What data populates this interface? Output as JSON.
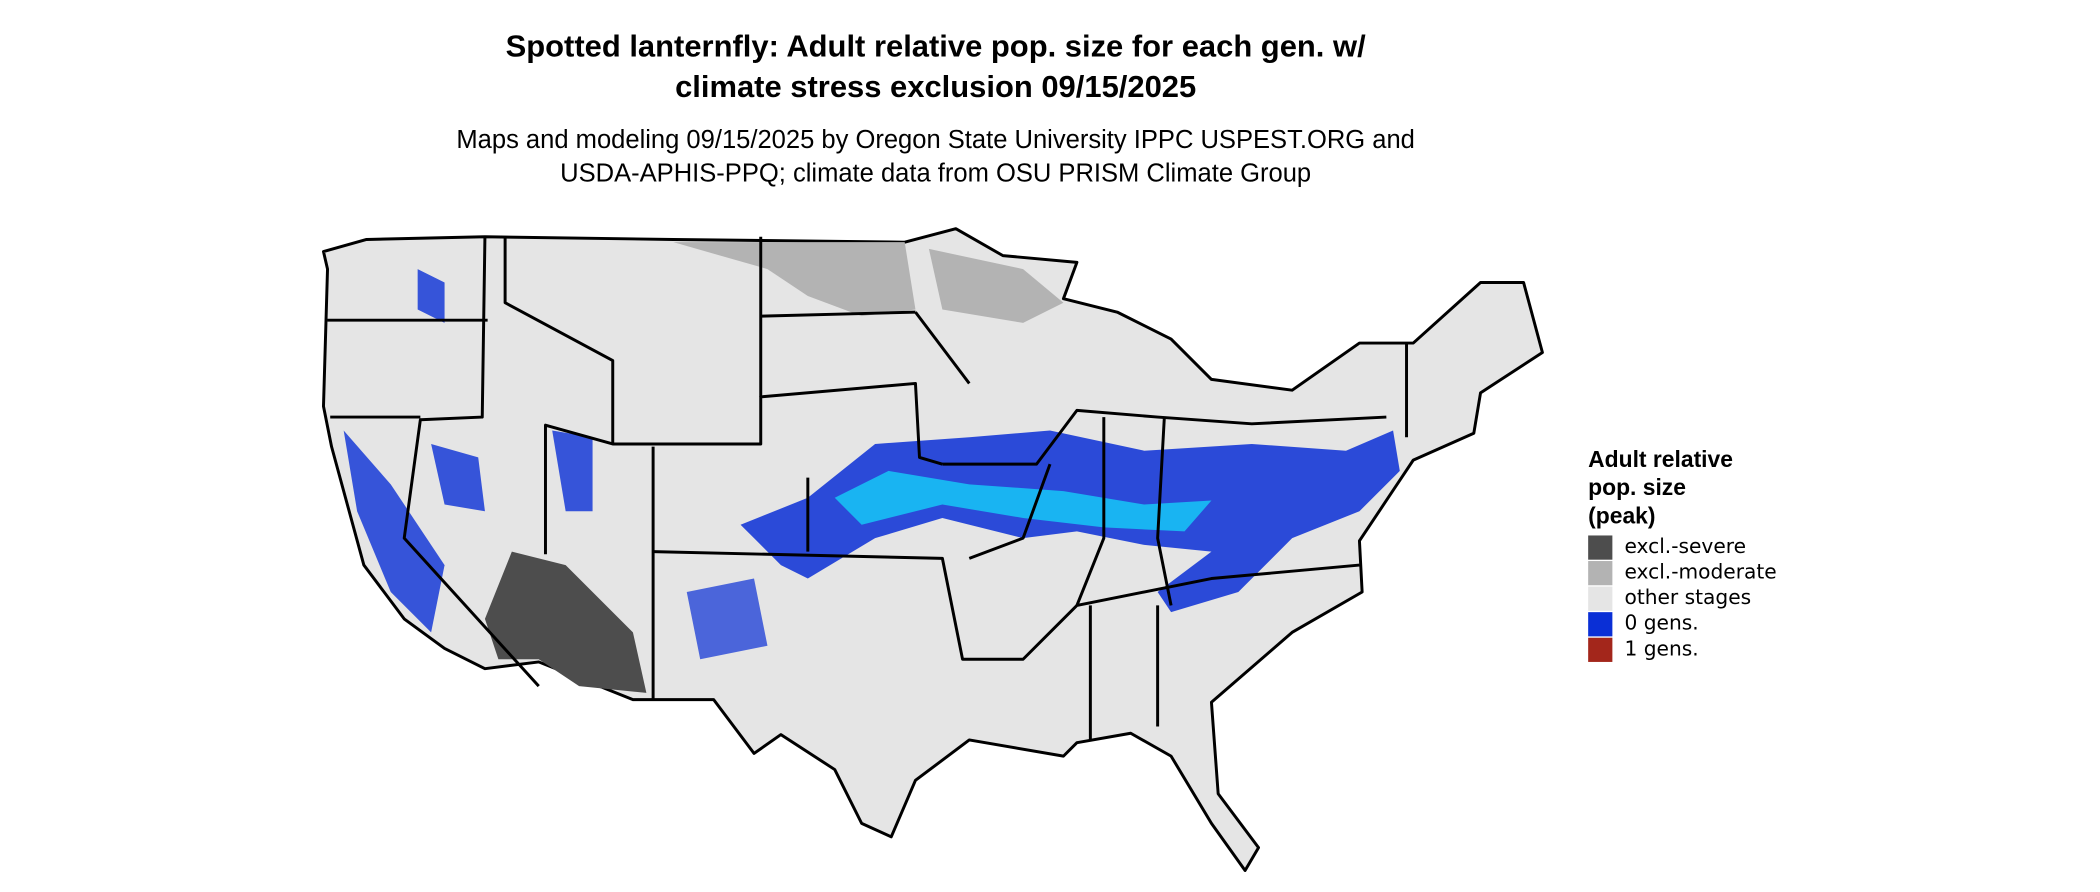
{
  "header": {
    "title_lines": [
      "Spotted lanternfly: Adult relative pop. size for each gen. w/",
      "climate stress exclusion 09/15/2025"
    ],
    "subtitle_lines": [
      "Maps and modeling 09/15/2025 by Oregon State University IPPC USPEST.ORG and",
      "USDA-APHIS-PPQ; climate data from OSU PRISM Climate Group"
    ]
  },
  "legend": {
    "title_lines": [
      "Adult relative",
      "pop. size",
      "(peak)"
    ],
    "items": [
      {
        "label": "excl.-severe",
        "color": "#4d4d4d"
      },
      {
        "label": "excl.-moderate",
        "color": "#b3b3b3"
      },
      {
        "label": "other stages",
        "color": "#e5e5e5"
      },
      {
        "label": "0 gens.",
        "color": "#0a2fd6"
      },
      {
        "label": "1 gens.",
        "color": "#a3261b"
      }
    ]
  }
}
